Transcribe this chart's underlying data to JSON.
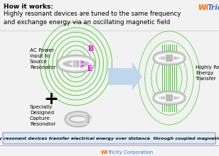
{
  "bg_color": "#f2f2f2",
  "title_bold": "How it works:",
  "title_normal": "Highly resonant devices are tuned to the same frequency\nand exchange energy via an oscillating magnetic field",
  "witricity_orange": "#FF6600",
  "witricity_blue": "#4477CC",
  "label_ac": "AC Power\nInput to\nSource\nResonator",
  "label_specially": "Specially\nDesigned\nCapture\nResonator",
  "label_hre": "Highly Resonant\nEnergy\nTransfer",
  "bottom_text": "Highly resonant devices transfer electrical energy over distance  through coupled magnetic field",
  "arrow_color": "#b8d4ee",
  "green_color": "#22CC00",
  "magenta_color": "#FF00FF",
  "gray_color": "#BBBBBB",
  "gray_dark": "#999999",
  "white": "#FFFFFF",
  "box_bg": "#dde8f5",
  "box_border": "#8899bb",
  "sep_color": "#cccccc",
  "footer_line_color": "#9999bb"
}
